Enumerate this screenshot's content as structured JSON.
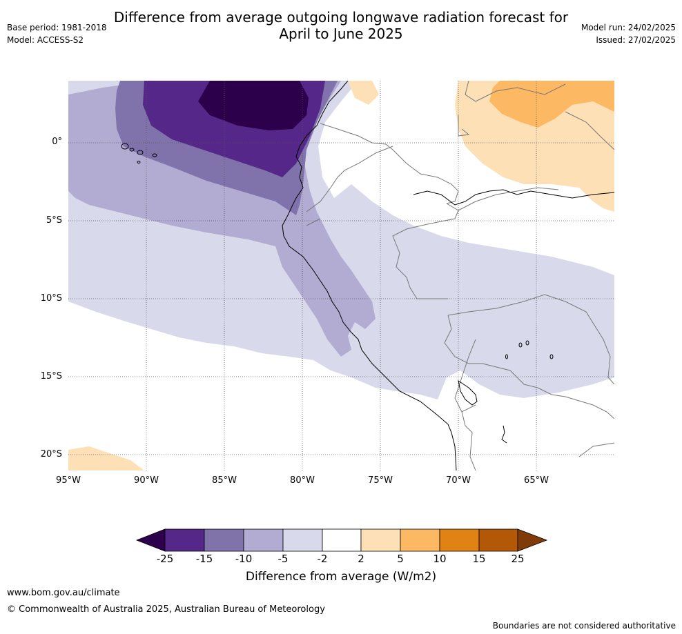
{
  "header": {
    "title_line1": "Difference from average outgoing longwave radiation forecast for",
    "title_line2": "April to June 2025",
    "base_period": "Base period: 1981-2018",
    "model": "Model: ACCESS-S2",
    "model_run": "Model run: 24/02/2025",
    "issued": "Issued: 27/02/2025"
  },
  "map": {
    "lat_labels": [
      "0°",
      "5°S",
      "10°S",
      "15°S",
      "20°S"
    ],
    "lon_labels": [
      "95°W",
      "90°W",
      "85°W",
      "80°W",
      "75°W",
      "70°W",
      "65°W"
    ],
    "colors": {
      "lt_minus25": "#2d004b",
      "m25_m15": "#542788",
      "m15_m10": "#8073ac",
      "m10_m5": "#b2abd2",
      "m5_m2": "#d8daeb",
      "m2_p2": "#ffffff",
      "p2_p5": "#fee0b6",
      "p5_p10": "#fdb863",
      "p10_p15": "#e08214",
      "p15_p25": "#b35806",
      "gt_p25": "#7f3b08"
    }
  },
  "colorbar": {
    "ticks": [
      "-25",
      "-15",
      "-10",
      "-5",
      "-2",
      "2",
      "5",
      "10",
      "15",
      "25"
    ],
    "label": "Difference from average (W/m2)"
  },
  "footer": {
    "website": "www.bom.gov.au/climate",
    "copyright": "© Commonwealth of Australia 2025, Australian Bureau of Meteorology",
    "disclaimer": "Boundaries are not considered authoritative"
  }
}
